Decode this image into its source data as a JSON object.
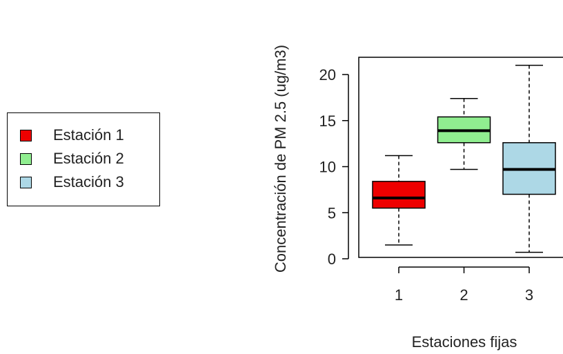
{
  "chart_data": {
    "type": "boxplot",
    "xlabel": "Estaciones fijas",
    "ylabel": "Concentración de PM 2.5 (ug/m3)",
    "ylim": [
      0,
      21
    ],
    "yticks": [
      0,
      5,
      10,
      15,
      20
    ],
    "categories": [
      "1",
      "2",
      "3"
    ],
    "boxes": [
      {
        "name": "Estación 1",
        "color": "#ee0000",
        "min": 1.5,
        "q1": 5.5,
        "median": 6.6,
        "q3": 8.4,
        "max": 11.2
      },
      {
        "name": "Estación 2",
        "color": "#90ee90",
        "min": 9.7,
        "q1": 12.6,
        "median": 13.9,
        "q3": 15.4,
        "max": 17.4
      },
      {
        "name": "Estación 3",
        "color": "#add8e6",
        "min": 0.7,
        "q1": 7.0,
        "median": 9.7,
        "q3": 12.6,
        "max": 21.0
      }
    ],
    "legend": {
      "position": "left",
      "entries": [
        "Estación 1",
        "Estación 2",
        "Estación 3"
      ]
    },
    "grid": false
  }
}
